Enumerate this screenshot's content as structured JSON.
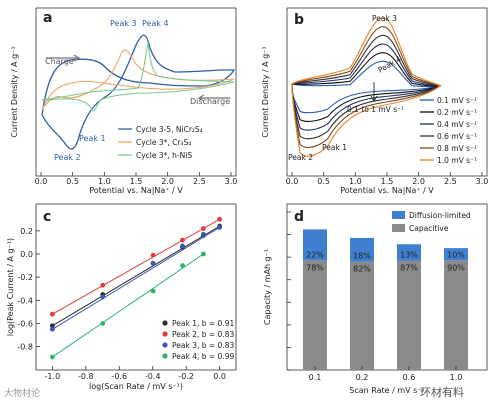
{
  "panels": {
    "a": {
      "letter": "a",
      "type": "line",
      "xlabel": "Potential vs. Na|Na⁺ / V",
      "ylabel": "Current Density / A g⁻¹",
      "xlim": [
        0,
        3.0
      ],
      "xticks": [
        "0.0",
        "0.5",
        "1.0",
        "1.5",
        "2.0",
        "2.5",
        "3.0"
      ],
      "annotations": {
        "peak1": "Peak 1",
        "peak2": "Peak 2",
        "peak3": "Peak 3",
        "peak4": "Peak 4",
        "charge": "Charge",
        "discharge": "Discharge"
      },
      "legend": [
        "Cycle 3-5, NiCr₂S₄",
        "Cycle 3*, Cr₃S₄",
        "Cycle 3*, h-NiS"
      ],
      "colors": [
        "#2f5fa8",
        "#f0a66b",
        "#7ec98f"
      ]
    },
    "b": {
      "letter": "b",
      "type": "line",
      "xlabel": "Potential vs. Na|Na⁺ / V",
      "ylabel": "Current Density / A g⁻¹",
      "xlim": [
        0,
        3.0
      ],
      "xticks": [
        "0.0",
        "0.5",
        "1.0",
        "1.5",
        "2.0",
        "2.5",
        "3.0"
      ],
      "annotations": {
        "peak1": "Peak 1",
        "peak2": "Peak 2",
        "peak3": "Peak 3",
        "peak4": "Peak 4",
        "arrow": "0.1 to 1 mV s⁻¹"
      },
      "legend": [
        "0.1 mV s⁻¹",
        "0.2 mV s⁻¹",
        "0.4 mV s⁻¹",
        "0.6 mV s⁻¹",
        "0.8 mV s⁻¹",
        "1.0 mV s⁻¹"
      ],
      "colors": [
        "#2b5aa8",
        "#111111",
        "#1f2d63",
        "#333333",
        "#7f4a24",
        "#e8822a"
      ]
    },
    "c": {
      "letter": "c",
      "type": "scatter",
      "xlabel": "log(Scan Rate / mV s⁻¹)",
      "ylabel": "log(Peak Current / A g⁻¹)",
      "xlim": [
        -1.05,
        0.05
      ],
      "ylim": [
        -0.95,
        0.38
      ],
      "xticks": [
        "-1.0",
        "-0.8",
        "-0.6",
        "-0.4",
        "-0.2",
        "0.0"
      ],
      "yticks": [
        "-0.8",
        "-0.6",
        "-0.4",
        "-0.2",
        "0.0",
        "0.2"
      ],
      "legend": [
        "Peak 1, b = 0.91",
        "Peak 2, b = 0.83",
        "Peak 3, b = 0.83",
        "Peak 4, b = 0.99"
      ]
    },
    "d": {
      "letter": "d",
      "type": "bar",
      "xlabel": "Scan Rate / mV s⁻¹",
      "ylabel": "Capacity / mAh g⁻¹",
      "legend": [
        "Diffusion-limited",
        "Capacitive"
      ],
      "colors": [
        "#3f7fcf",
        "#8a8a8a"
      ]
    }
  },
  "chart_data": [
    {
      "type": "line",
      "panel": "a",
      "series": [
        {
          "name": "Cycle 3-5, NiCr₂S₄",
          "x": [
            0.05,
            0.2,
            0.35,
            0.45,
            0.6,
            0.8,
            1.0,
            1.2,
            1.3,
            1.5,
            1.7,
            2.0,
            2.5,
            3.0
          ],
          "y": [
            0.2,
            0.45,
            0.2,
            0.6,
            1.0,
            1.3,
            1.9,
            2.6,
            2.9,
            2.0,
            1.8,
            1.8,
            1.7,
            1.5
          ]
        },
        {
          "name": "Cycle 3*, Cr₃S₄",
          "x": [
            0.05,
            0.3,
            0.5,
            0.8,
            1.0,
            1.2,
            1.4,
            1.6,
            1.8,
            2.2,
            2.6,
            3.0
          ],
          "y": [
            0.3,
            0.9,
            1.2,
            1.5,
            1.8,
            2.3,
            2.0,
            1.6,
            1.5,
            1.4,
            1.4,
            1.3
          ]
        },
        {
          "name": "Cycle 3*, h-NiS",
          "x": [
            0.05,
            0.5,
            1.0,
            1.4,
            1.6,
            1.65,
            1.75,
            2.0,
            2.5,
            3.0
          ],
          "y": [
            0.4,
            0.8,
            1.0,
            1.3,
            1.8,
            2.5,
            1.4,
            1.2,
            1.1,
            1.1
          ]
        }
      ]
    },
    {
      "type": "line",
      "panel": "b",
      "series": [
        {
          "name": "0.1 mV s⁻¹",
          "peak3": 0.5
        },
        {
          "name": "0.2 mV s⁻¹",
          "peak3": 0.8
        },
        {
          "name": "0.4 mV s⁻¹",
          "peak3": 1.1
        },
        {
          "name": "0.6 mV s⁻¹",
          "peak3": 1.35
        },
        {
          "name": "0.8 mV s⁻¹",
          "peak3": 1.6
        },
        {
          "name": "1.0 mV s⁻¹",
          "peak3": 1.85
        }
      ]
    },
    {
      "type": "scatter",
      "panel": "c",
      "x": [
        -1.0,
        -0.699,
        -0.398,
        -0.222,
        -0.097,
        0.0
      ],
      "series": [
        {
          "name": "Peak 1, b = 0.91",
          "color": "#2d2d2d",
          "y": [
            -0.62,
            -0.35,
            -0.08,
            0.06,
            0.16,
            0.24
          ]
        },
        {
          "name": "Peak 2, b = 0.83",
          "color": "#e23b3b",
          "y": [
            -0.52,
            -0.27,
            -0.01,
            0.12,
            0.22,
            0.3
          ]
        },
        {
          "name": "Peak 3, b = 0.83",
          "color": "#3a58b5",
          "y": [
            -0.65,
            -0.37,
            -0.08,
            0.07,
            0.17,
            0.23
          ]
        },
        {
          "name": "Peak 4, b = 0.99",
          "color": "#2fb36b",
          "y": [
            -0.89,
            -0.6,
            -0.32,
            -0.1,
            0.0,
            null
          ]
        }
      ]
    },
    {
      "type": "bar",
      "panel": "d",
      "categories": [
        "0.1",
        "0.2",
        "0.6",
        "1.0"
      ],
      "series": [
        {
          "name": "Capacitive",
          "values": [
            486,
            480,
            485,
            486
          ],
          "pct": [
            "78%",
            "82%",
            "87%",
            "90%"
          ]
        },
        {
          "name": "Diffusion-limited",
          "values": [
            137,
            105,
            72,
            54
          ],
          "pct": [
            "22%",
            "18%",
            "13%",
            "10%"
          ]
        }
      ]
    }
  ],
  "watermarks": [
    "大物材论",
    "环材有料"
  ]
}
